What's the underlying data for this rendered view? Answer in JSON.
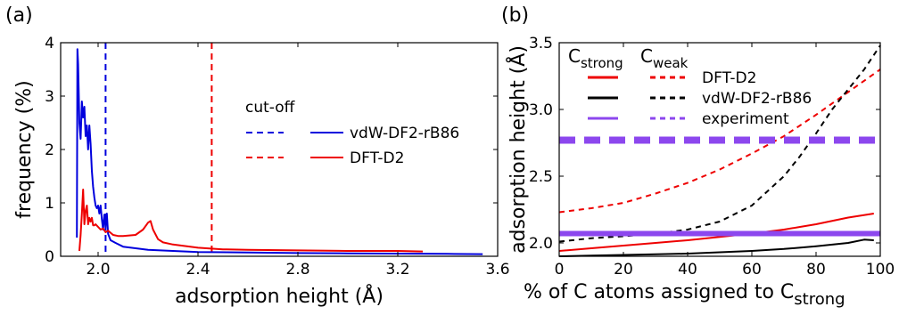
{
  "chart_data": [
    {
      "panel_label": "(a)",
      "type": "line",
      "xlabel": "adsorption height (Å)",
      "ylabel": "frequency (%)",
      "xlim": [
        1.85,
        3.6
      ],
      "ylim": [
        0,
        4
      ],
      "xticks": [
        "2.0",
        "2.4",
        "2.8",
        "3.2",
        "3.6"
      ],
      "xtick_values": [
        2.0,
        2.4,
        2.8,
        3.2,
        3.6
      ],
      "yticks": [
        "0",
        "1",
        "2",
        "3",
        "4"
      ],
      "ytick_values": [
        0,
        1,
        2,
        3,
        4
      ],
      "legend_title": "cut-off",
      "series": [
        {
          "name": "vdW-DF2-rB86",
          "color": "#0000dd",
          "x": [
            1.915,
            1.917,
            1.92,
            1.925,
            1.93,
            1.935,
            1.94,
            1.945,
            1.95,
            1.955,
            1.96,
            1.965,
            1.97,
            1.975,
            1.98,
            1.985,
            1.99,
            1.995,
            2.0,
            2.005,
            2.01,
            2.015,
            2.02,
            2.025,
            2.03,
            2.035,
            2.04,
            2.05,
            2.07,
            2.1,
            2.15,
            2.2,
            2.3,
            2.4,
            2.6,
            2.8,
            3.0,
            3.2,
            3.4,
            3.54
          ],
          "y": [
            0.35,
            3.88,
            3.6,
            2.5,
            2.2,
            2.9,
            2.6,
            2.8,
            2.25,
            2.45,
            2.0,
            2.45,
            2.1,
            1.6,
            1.3,
            1.1,
            0.95,
            0.9,
            0.95,
            0.8,
            0.95,
            0.7,
            0.5,
            0.78,
            0.55,
            0.8,
            0.42,
            0.3,
            0.25,
            0.18,
            0.15,
            0.12,
            0.1,
            0.08,
            0.07,
            0.06,
            0.055,
            0.05,
            0.045,
            0.04
          ]
        },
        {
          "name": "DFT-D2",
          "color": "#ee0000",
          "x": [
            1.925,
            1.93,
            1.935,
            1.94,
            1.945,
            1.95,
            1.955,
            1.96,
            1.965,
            1.97,
            1.975,
            1.98,
            1.985,
            1.99,
            2.0,
            2.01,
            2.02,
            2.03,
            2.04,
            2.06,
            2.08,
            2.1,
            2.15,
            2.18,
            2.2,
            2.21,
            2.22,
            2.24,
            2.26,
            2.3,
            2.4,
            2.5,
            2.6,
            2.8,
            3.0,
            3.2,
            3.3
          ],
          "y": [
            0.1,
            0.4,
            0.8,
            1.25,
            0.6,
            0.85,
            0.95,
            0.6,
            0.72,
            0.65,
            0.72,
            0.58,
            0.58,
            0.6,
            0.55,
            0.5,
            0.52,
            0.45,
            0.48,
            0.4,
            0.38,
            0.38,
            0.4,
            0.5,
            0.63,
            0.66,
            0.5,
            0.32,
            0.26,
            0.22,
            0.16,
            0.13,
            0.12,
            0.11,
            0.1,
            0.1,
            0.09
          ]
        }
      ],
      "cutoffs": [
        {
          "name": "vdW-DF2-rB86",
          "x": 2.03,
          "color": "#0000dd"
        },
        {
          "name": "DFT-D2",
          "x": 2.455,
          "color": "#ee0000"
        }
      ]
    },
    {
      "panel_label": "(b)",
      "type": "line",
      "xlabel": "% of C atoms assigned to C",
      "xlabel_sub": "strong",
      "ylabel": "adsorption height (Å)",
      "xlim": [
        0,
        100
      ],
      "ylim": [
        1.9,
        3.5
      ],
      "xticks": [
        "0",
        "20",
        "40",
        "60",
        "80",
        "100"
      ],
      "xtick_values": [
        0,
        20,
        40,
        60,
        80,
        100
      ],
      "yticks": [
        "2.0",
        "2.5",
        "3.0",
        "3.5"
      ],
      "ytick_values": [
        2.0,
        2.5,
        3.0,
        3.5
      ],
      "legend_header_strong_base": "C",
      "legend_header_strong_sub": "strong",
      "legend_header_weak_base": "C",
      "legend_header_weak_sub": "weak",
      "series": [
        {
          "name": "DFT-D2",
          "role": "strong",
          "color": "#ee0000",
          "style": "solid",
          "x": [
            0,
            10,
            20,
            30,
            40,
            50,
            60,
            70,
            80,
            90,
            98
          ],
          "y": [
            1.94,
            1.96,
            1.98,
            2.0,
            2.02,
            2.045,
            2.07,
            2.1,
            2.14,
            2.19,
            2.22
          ]
        },
        {
          "name": "DFT-D2",
          "role": "weak",
          "color": "#ee0000",
          "style": "dashed",
          "x": [
            0,
            10,
            20,
            30,
            40,
            50,
            60,
            70,
            80,
            90,
            100
          ],
          "y": [
            2.23,
            2.26,
            2.3,
            2.37,
            2.45,
            2.55,
            2.67,
            2.8,
            2.96,
            3.13,
            3.3
          ]
        },
        {
          "name": "vdW-DF2-rB86",
          "role": "strong",
          "color": "#000000",
          "style": "solid",
          "x": [
            0,
            10,
            20,
            30,
            40,
            50,
            60,
            70,
            80,
            90,
            95,
            98
          ],
          "y": [
            1.9,
            1.905,
            1.91,
            1.915,
            1.92,
            1.93,
            1.94,
            1.955,
            1.975,
            2.0,
            2.025,
            2.02
          ]
        },
        {
          "name": "vdW-DF2-rB86",
          "role": "weak",
          "color": "#000000",
          "style": "dashed",
          "x": [
            0,
            10,
            20,
            30,
            40,
            50,
            60,
            70,
            75,
            80,
            85,
            90,
            95,
            100
          ],
          "y": [
            2.01,
            2.035,
            2.05,
            2.07,
            2.1,
            2.16,
            2.28,
            2.5,
            2.65,
            2.82,
            3.0,
            3.15,
            3.3,
            3.48
          ]
        },
        {
          "name": "experiment",
          "role": "strong",
          "color": "#8c47ee",
          "style": "solid",
          "x": [
            0,
            100
          ],
          "y": [
            2.07,
            2.07
          ]
        },
        {
          "name": "experiment",
          "role": "weak",
          "color": "#8c47ee",
          "style": "dashed",
          "x": [
            0,
            100
          ],
          "y": [
            2.77,
            2.77
          ]
        }
      ],
      "legend_labels": [
        "DFT-D2",
        "vdW-DF2-rB86",
        "experiment"
      ]
    }
  ]
}
